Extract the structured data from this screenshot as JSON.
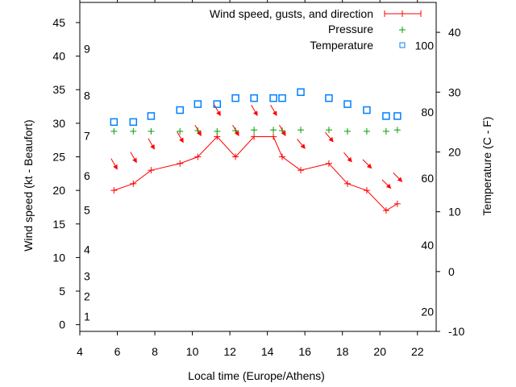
{
  "chart_data": {
    "type": "line",
    "title": "",
    "xlabel": "Local time (Europe/Athens)",
    "ylabel": "Wind speed (kt - Beaufort)",
    "y2label": "Temperature (C - F)",
    "xlim": [
      4,
      23
    ],
    "ylim": [
      -1,
      48
    ],
    "y2lim": [
      -10,
      45
    ],
    "grid": false,
    "legend_position": "top-right",
    "x_ticks": [
      4,
      6,
      8,
      10,
      12,
      14,
      16,
      18,
      20,
      22
    ],
    "y_ticks": [
      0,
      5,
      10,
      15,
      20,
      25,
      30,
      35,
      40,
      45
    ],
    "y2_ticks": [
      -10,
      0,
      10,
      20,
      30,
      40
    ],
    "beaufort_labels": [
      {
        "label": "1",
        "kt": 1.2
      },
      {
        "label": "2",
        "kt": 4.2
      },
      {
        "label": "3",
        "kt": 7.2
      },
      {
        "label": "4",
        "kt": 11.2
      },
      {
        "label": "5",
        "kt": 17.1
      },
      {
        "label": "6",
        "kt": 22.2
      },
      {
        "label": "7",
        "kt": 28.1
      },
      {
        "label": "8",
        "kt": 34.1
      },
      {
        "label": "9",
        "kt": 41.1
      }
    ],
    "fahrenheit_labels": [
      {
        "label": "20",
        "c": -6.7
      },
      {
        "label": "40",
        "c": 4.4
      },
      {
        "label": "60",
        "c": 15.6
      },
      {
        "label": "80",
        "c": 26.7
      },
      {
        "label": "100",
        "c": 37.8
      }
    ],
    "x": [
      5.82,
      6.85,
      7.8,
      9.34,
      10.29,
      11.32,
      12.3,
      13.29,
      14.32,
      14.79,
      15.78,
      17.28,
      18.27,
      19.3,
      20.33,
      20.93
    ],
    "series": [
      {
        "name": "Wind speed, gusts, and direction",
        "color": "#ff0000",
        "axis": "y",
        "values": [
          20,
          21,
          23,
          24,
          25,
          28,
          25,
          28,
          28,
          25,
          23,
          24,
          21,
          20,
          17,
          18
        ],
        "gusts": [
          24,
          25,
          27,
          28,
          29,
          32,
          29,
          32,
          32,
          29,
          27,
          28,
          25,
          24,
          21,
          22
        ],
        "direction_deg": [
          330,
          330,
          330,
          330,
          330,
          330,
          330,
          330,
          330,
          330,
          320,
          320,
          320,
          315,
          315,
          315
        ]
      },
      {
        "name": "Pressure",
        "color": "#00a000",
        "axis": "y",
        "values": [
          28.8,
          28.8,
          28.8,
          28.8,
          28.9,
          28.8,
          28.9,
          29,
          29,
          28.9,
          29,
          29,
          28.8,
          28.8,
          28.8,
          29
        ]
      },
      {
        "name": "Temperature",
        "color": "#0080ff",
        "axis": "y2",
        "values": [
          25,
          25,
          26,
          27,
          28,
          28,
          29,
          29,
          29,
          29,
          30,
          29,
          28,
          27,
          26,
          26
        ]
      }
    ]
  }
}
